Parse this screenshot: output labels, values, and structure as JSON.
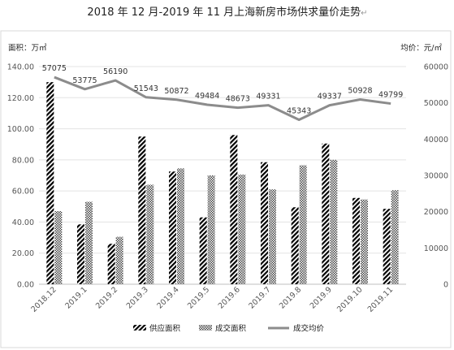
{
  "chart_data": {
    "type": "bar",
    "title": "2018 年 12 月-2019 年 11 月上海新房市场供求量价走势",
    "title_mark": "↵",
    "y_left_label": "面积：万㎡",
    "y_right_label": "均价：元/㎡",
    "ylim_left": [
      0,
      140
    ],
    "ylim_right": [
      0,
      60000
    ],
    "y_left_ticks": [
      "0.00",
      "20.00",
      "40.00",
      "60.00",
      "80.00",
      "100.00",
      "120.00",
      "140.00"
    ],
    "y_right_ticks": [
      "0",
      "10000",
      "20000",
      "30000",
      "40000",
      "50000",
      "60000"
    ],
    "categories": [
      "2018.12",
      "2019.1",
      "2019.2",
      "2019.3",
      "2019.4",
      "2019.5",
      "2019.6",
      "2019.7",
      "2019.8",
      "2019.9",
      "2019.10",
      "2019.11"
    ],
    "series": [
      {
        "name": "供应面积",
        "type": "bar",
        "axis": "left",
        "pattern": "diagonal-stripes",
        "values": [
          130,
          38.5,
          26,
          95,
          72.5,
          43,
          96,
          78.5,
          49.5,
          90.5,
          55.5,
          48.5
        ]
      },
      {
        "name": "成交面积",
        "type": "bar",
        "axis": "left",
        "pattern": "checker",
        "values": [
          47,
          53,
          30.5,
          64,
          74.5,
          70,
          70.5,
          61,
          76.5,
          80,
          54.5,
          60.5
        ]
      },
      {
        "name": "成交均价",
        "type": "line",
        "axis": "right",
        "color": "#8c8c8c",
        "values": [
          57075,
          53775,
          56190,
          51543,
          50872,
          49484,
          48673,
          49331,
          45343,
          49337,
          50928,
          49799
        ],
        "labels": [
          "57075",
          "53775",
          "56190",
          "51543",
          "50872",
          "49484",
          "48673",
          "49331",
          "45343",
          "49337",
          "50928",
          "49799"
        ]
      }
    ],
    "grid": true,
    "legend_position": "bottom"
  }
}
